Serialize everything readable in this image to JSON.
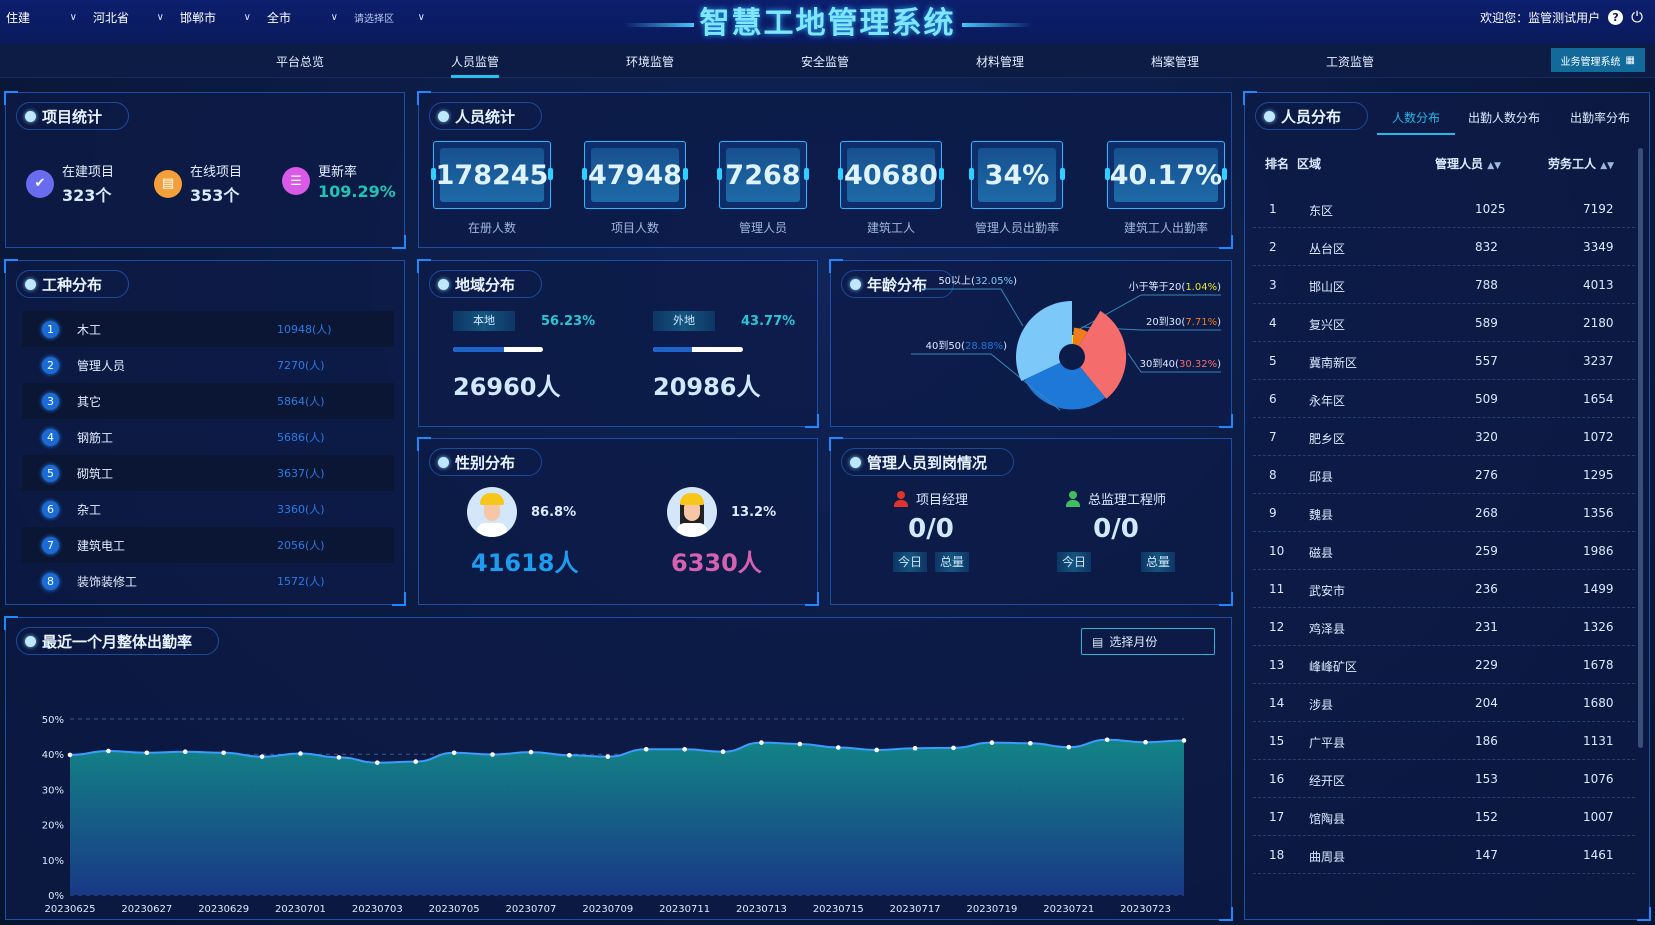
{
  "header": {
    "filters": [
      "住建",
      "河北省",
      "邯郸市",
      "全市",
      "请选择区"
    ],
    "title": "智慧工地管理系统",
    "welcome": "欢迎您：监管测试用户",
    "help_icon": "?"
  },
  "nav": {
    "tabs": [
      "平台总览",
      "人员监管",
      "环境监管",
      "安全监管",
      "材料管理",
      "档案管理",
      "工资监管"
    ],
    "active": "人员监管",
    "biz_button": "业务管理系统"
  },
  "project_stats": {
    "title": "项目统计",
    "items": [
      {
        "label": "在建项目",
        "value": "323个",
        "icon": "calendar-check-icon",
        "color": "#6a6cf0"
      },
      {
        "label": "在线项目",
        "value": "353个",
        "icon": "folder-icon",
        "color": "#f4a03a"
      },
      {
        "label": "更新率",
        "value": "109.29%",
        "icon": "clipboard-icon",
        "color": "#d85ae6"
      }
    ]
  },
  "worker_types": {
    "title": "工种分布",
    "items": [
      {
        "rank": "1",
        "name": "木工",
        "value": "10948(人)"
      },
      {
        "rank": "2",
        "name": "管理人员",
        "value": "7270(人)"
      },
      {
        "rank": "3",
        "name": "其它",
        "value": "5864(人)"
      },
      {
        "rank": "4",
        "name": "钢筋工",
        "value": "5686(人)"
      },
      {
        "rank": "5",
        "name": "砌筑工",
        "value": "3637(人)"
      },
      {
        "rank": "6",
        "name": "杂工",
        "value": "3360(人)"
      },
      {
        "rank": "7",
        "name": "建筑电工",
        "value": "2056(人)"
      },
      {
        "rank": "8",
        "name": "装饰装修工",
        "value": "1572(人)"
      }
    ]
  },
  "personnel_stats": {
    "title": "人员统计",
    "cards": [
      {
        "value": "178245",
        "label": "在册人数"
      },
      {
        "value": "47948",
        "label": "项目人数"
      },
      {
        "value": "7268",
        "label": "管理人员"
      },
      {
        "value": "40680",
        "label": "建筑工人"
      },
      {
        "value": "34%",
        "label": "管理人员出勤率"
      },
      {
        "value": "40.17%",
        "label": "建筑工人出勤率"
      }
    ]
  },
  "region_dist": {
    "title": "地域分布",
    "items": [
      {
        "tag": "本地",
        "pct": "56.23%",
        "fill": 56.23,
        "count": "26960人"
      },
      {
        "tag": "外地",
        "pct": "43.77%",
        "fill": 43.77,
        "count": "20986人"
      }
    ]
  },
  "gender_dist": {
    "title": "性别分布",
    "items": [
      {
        "pct": "86.8%",
        "count": "41618人",
        "color": "#1e9cf0"
      },
      {
        "pct": "13.2%",
        "count": "6330人",
        "color": "#d561b0"
      }
    ]
  },
  "age_dist": {
    "title": "年龄分布",
    "chart_data": {
      "type": "pie",
      "rose": true,
      "slices": [
        {
          "name": "小于等于20",
          "pct": "1.04%",
          "value": 1.04,
          "color": "#e4e62c"
        },
        {
          "name": "20到30",
          "pct": "7.71%",
          "value": 7.71,
          "color": "#f07c1c"
        },
        {
          "name": "30到40",
          "pct": "30.32%",
          "value": 30.32,
          "color": "#f46c6c"
        },
        {
          "name": "40到50",
          "pct": "28.88%",
          "value": 28.88,
          "color": "#1e78d8"
        },
        {
          "name": "50以上",
          "pct": "32.05%",
          "value": 32.05,
          "color": "#7cc8f8"
        }
      ]
    }
  },
  "manager_attendance": {
    "title": "管理人员到岗情况",
    "items": [
      {
        "label": "项目经理",
        "value": "0/0",
        "today": "今日",
        "total": "总量",
        "color": "#e0342a"
      },
      {
        "label": "总监理工程师",
        "value": "0/0",
        "today": "今日",
        "total": "总量",
        "color": "#3fbf62"
      }
    ]
  },
  "attendance_chart": {
    "title": "最近一个月整体出勤率",
    "month_button": "选择月份",
    "chart_data": {
      "type": "area",
      "x": [
        "20230625",
        "20230626",
        "20230627",
        "20230628",
        "20230629",
        "20230630",
        "20230701",
        "20230702",
        "20230703",
        "20230704",
        "20230705",
        "20230706",
        "20230707",
        "20230708",
        "20230709",
        "20230710",
        "20230711",
        "20230712",
        "20230713",
        "20230714",
        "20230715",
        "20230716",
        "20230717",
        "20230718",
        "20230719",
        "20230720",
        "20230721",
        "20230722",
        "20230723",
        "20230724"
      ],
      "y": [
        39.8,
        40.9,
        40.4,
        40.7,
        40.4,
        39.3,
        40.2,
        39.1,
        37.6,
        37.9,
        40.4,
        39.9,
        40.6,
        39.7,
        39.3,
        41.4,
        41.4,
        40.7,
        43.3,
        42.9,
        41.9,
        41.2,
        41.7,
        41.8,
        43.3,
        43.1,
        42.0,
        44.1,
        43.4,
        43.9
      ],
      "x_tick_labels": [
        "20230625",
        "20230627",
        "20230629",
        "20230701",
        "20230703",
        "20230705",
        "20230707",
        "20230709",
        "20230711",
        "20230713",
        "20230715",
        "20230717",
        "20230719",
        "20230721",
        "20230723"
      ],
      "y_tick_labels": [
        "0%",
        "10%",
        "20%",
        "30%",
        "40%",
        "50%"
      ],
      "ylim": [
        0,
        50
      ],
      "grid": "dashed horizontal",
      "line_color": "#3a9cff",
      "fill_top": "#138a8a",
      "fill_bottom": "#1a3a8a"
    }
  },
  "personnel_dist": {
    "title": "人员分布",
    "tabs": [
      "人数分布",
      "出勤人数分布",
      "出勤率分布"
    ],
    "active_tab": "人数分布",
    "columns": [
      "排名",
      "区域",
      "管理人员",
      "劳务工人"
    ],
    "rows": [
      [
        "1",
        "东区",
        "1025",
        "7192"
      ],
      [
        "2",
        "丛台区",
        "832",
        "3349"
      ],
      [
        "3",
        "邯山区",
        "788",
        "4013"
      ],
      [
        "4",
        "复兴区",
        "589",
        "2180"
      ],
      [
        "5",
        "冀南新区",
        "557",
        "3237"
      ],
      [
        "6",
        "永年区",
        "509",
        "1654"
      ],
      [
        "7",
        "肥乡区",
        "320",
        "1072"
      ],
      [
        "8",
        "邱县",
        "276",
        "1295"
      ],
      [
        "9",
        "魏县",
        "268",
        "1356"
      ],
      [
        "10",
        "磁县",
        "259",
        "1986"
      ],
      [
        "11",
        "武安市",
        "236",
        "1499"
      ],
      [
        "12",
        "鸡泽县",
        "231",
        "1326"
      ],
      [
        "13",
        "峰峰矿区",
        "229",
        "1678"
      ],
      [
        "14",
        "涉县",
        "204",
        "1680"
      ],
      [
        "15",
        "广平县",
        "186",
        "1131"
      ],
      [
        "16",
        "经开区",
        "153",
        "1076"
      ],
      [
        "17",
        "馆陶县",
        "152",
        "1007"
      ],
      [
        "18",
        "曲周县",
        "147",
        "1461"
      ]
    ]
  }
}
